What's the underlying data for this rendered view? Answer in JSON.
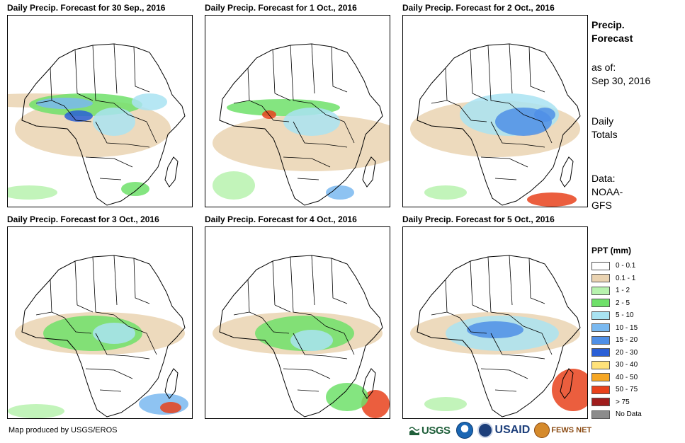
{
  "panels": [
    {
      "title": "Daily Precip. Forecast for 30 Sep., 2016"
    },
    {
      "title": "Daily Precip. Forecast for 1 Oct., 2016"
    },
    {
      "title": "Daily Precip. Forecast for 2 Oct., 2016"
    },
    {
      "title": "Daily Precip. Forecast for 3 Oct., 2016"
    },
    {
      "title": "Daily Precip. Forecast for 4 Oct., 2016"
    },
    {
      "title": "Daily Precip. Forecast for 5 Oct., 2016"
    }
  ],
  "sidebar": {
    "heading_line1": "Precip.",
    "heading_line2": "Forecast",
    "as_of_label": "as of:",
    "as_of_date": "Sep 30, 2016",
    "totals_line1": "Daily",
    "totals_line2": "Totals",
    "data_line1": "Data:",
    "data_line2": "NOAA-",
    "data_line3": "GFS"
  },
  "legend": {
    "title": "PPT (mm)",
    "items": [
      {
        "label": "0 - 0.1",
        "color": "#ffffff"
      },
      {
        "label": "0.1 - 1",
        "color": "#ead3b1"
      },
      {
        "label": "1 - 2",
        "color": "#b7f2ae"
      },
      {
        "label": "2 - 5",
        "color": "#6fe06a"
      },
      {
        "label": "5 - 10",
        "color": "#a9e3f2"
      },
      {
        "label": "10 - 15",
        "color": "#7ab9f0"
      },
      {
        "label": "15 - 20",
        "color": "#4f8fe6"
      },
      {
        "label": "20 - 30",
        "color": "#2a5fd6"
      },
      {
        "label": "30 - 40",
        "color": "#ffe27a"
      },
      {
        "label": "40 - 50",
        "color": "#f5a623"
      },
      {
        "label": "50 - 75",
        "color": "#e8421c"
      },
      {
        "label": "> 75",
        "color": "#a01d1d"
      },
      {
        "label": "No Data",
        "color": "#8c8c8c"
      }
    ]
  },
  "footer": {
    "credit": "Map produced by USGS/EROS",
    "logos": {
      "usgs": "USGS",
      "usaid": "USAID",
      "fews": "FEWS NET"
    }
  }
}
